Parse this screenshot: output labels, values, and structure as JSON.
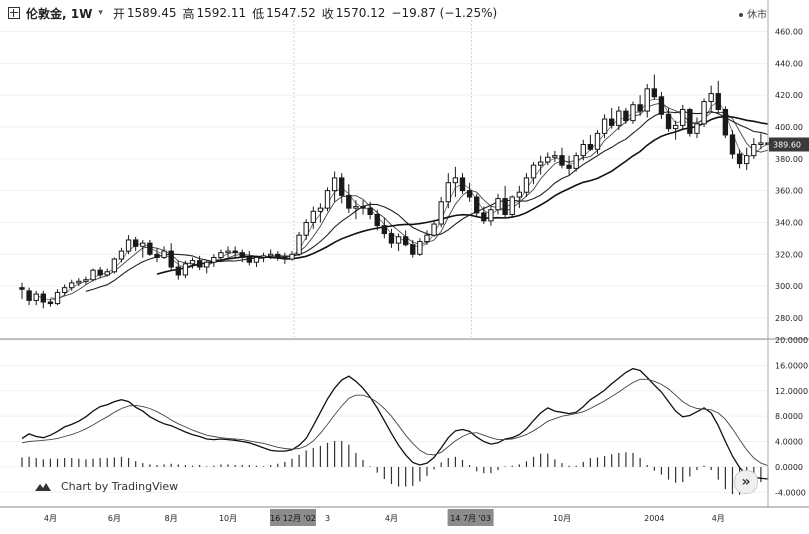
{
  "header": {
    "symbol": "伦敦金, 1W",
    "open_label": "开",
    "open_value": "1589.45",
    "high_label": "高",
    "high_value": "1592.11",
    "low_label": "低",
    "low_value": "1547.52",
    "close_label": "收",
    "close_value": "1570.12",
    "change": "−19.87 (−1.25%)",
    "market_status": "休市"
  },
  "branding": "Chart by TradingView",
  "price_badge": "389.60",
  "colors": {
    "candle": "#1a1a1a",
    "badge_bg": "#3a3a3a",
    "highlight_bg": "#8c8c8c",
    "grid": "#f1f1f1"
  },
  "chart_data": [
    {
      "type": "candlestick",
      "title": "",
      "y_axis_ticks": [
        "460.00",
        "440.00",
        "420.00",
        "400.00",
        "380.00",
        "360.00",
        "340.00",
        "320.00",
        "300.00",
        "280.00"
      ],
      "ylim": [
        268,
        466
      ],
      "x_tick_labels": [
        "4月",
        "6月",
        "8月",
        "10月",
        "3",
        "4月",
        "10月",
        "2004",
        "4月"
      ],
      "x_highlight_labels": [
        "16 12月 '02",
        "14 7月 '03"
      ],
      "x_index_range": [
        0,
        105
      ],
      "ohlc": [
        [
          299,
          302,
          292,
          298
        ],
        [
          297,
          299,
          288,
          291
        ],
        [
          291,
          297,
          288,
          295
        ],
        [
          295,
          297,
          286,
          290
        ],
        [
          290,
          292,
          287,
          289
        ],
        [
          289,
          298,
          288,
          296
        ],
        [
          296,
          301,
          294,
          299
        ],
        [
          299,
          304,
          297,
          302
        ],
        [
          302,
          305,
          300,
          303
        ],
        [
          303,
          306,
          301,
          304
        ],
        [
          304,
          311,
          303,
          310
        ],
        [
          310,
          312,
          305,
          307
        ],
        [
          307,
          311,
          306,
          309
        ],
        [
          309,
          318,
          308,
          317
        ],
        [
          317,
          324,
          315,
          322
        ],
        [
          322,
          332,
          320,
          329
        ],
        [
          329,
          331,
          322,
          325
        ],
        [
          325,
          329,
          318,
          327
        ],
        [
          327,
          329,
          319,
          320
        ],
        [
          320,
          324,
          315,
          318
        ],
        [
          318,
          325,
          317,
          322
        ],
        [
          322,
          327,
          310,
          312
        ],
        [
          312,
          316,
          304,
          307
        ],
        [
          307,
          316,
          305,
          314
        ],
        [
          314,
          318,
          311,
          316
        ],
        [
          316,
          319,
          310,
          312
        ],
        [
          312,
          316,
          308,
          315
        ],
        [
          315,
          320,
          312,
          318
        ],
        [
          318,
          323,
          316,
          321
        ],
        [
          321,
          325,
          318,
          322
        ],
        [
          322,
          325,
          318,
          321
        ],
        [
          321,
          323,
          315,
          318
        ],
        [
          318,
          322,
          313,
          315
        ],
        [
          315,
          319,
          312,
          318
        ],
        [
          318,
          321,
          315,
          319
        ],
        [
          319,
          323,
          317,
          320
        ],
        [
          320,
          322,
          316,
          318
        ],
        [
          318,
          321,
          314,
          317
        ],
        [
          317,
          322,
          316,
          320
        ],
        [
          320,
          334,
          319,
          332
        ],
        [
          332,
          342,
          329,
          340
        ],
        [
          340,
          350,
          336,
          347
        ],
        [
          347,
          352,
          340,
          349
        ],
        [
          349,
          362,
          347,
          360
        ],
        [
          360,
          372,
          353,
          368
        ],
        [
          368,
          371,
          352,
          357
        ],
        [
          357,
          364,
          346,
          349
        ],
        [
          349,
          354,
          342,
          350
        ],
        [
          350,
          354,
          345,
          349
        ],
        [
          349,
          353,
          342,
          345
        ],
        [
          345,
          348,
          335,
          338
        ],
        [
          338,
          343,
          330,
          333
        ],
        [
          333,
          336,
          324,
          327
        ],
        [
          327,
          333,
          322,
          331
        ],
        [
          331,
          335,
          325,
          326
        ],
        [
          326,
          329,
          318,
          320
        ],
        [
          320,
          330,
          319,
          328
        ],
        [
          328,
          335,
          326,
          332
        ],
        [
          332,
          341,
          331,
          339
        ],
        [
          339,
          356,
          337,
          353
        ],
        [
          353,
          371,
          349,
          365
        ],
        [
          365,
          375,
          356,
          368
        ],
        [
          368,
          371,
          358,
          360
        ],
        [
          360,
          365,
          353,
          356
        ],
        [
          356,
          358,
          344,
          346
        ],
        [
          346,
          350,
          339,
          341
        ],
        [
          341,
          350,
          338,
          348
        ],
        [
          348,
          358,
          345,
          355
        ],
        [
          355,
          363,
          343,
          345
        ],
        [
          345,
          357,
          343,
          356
        ],
        [
          356,
          363,
          349,
          359
        ],
        [
          359,
          371,
          356,
          368
        ],
        [
          368,
          378,
          364,
          376
        ],
        [
          376,
          382,
          370,
          378
        ],
        [
          378,
          384,
          376,
          381
        ],
        [
          381,
          385,
          378,
          382
        ],
        [
          382,
          387,
          374,
          376
        ],
        [
          376,
          382,
          370,
          374
        ],
        [
          374,
          384,
          372,
          382
        ],
        [
          382,
          392,
          379,
          389
        ],
        [
          389,
          395,
          385,
          386
        ],
        [
          386,
          398,
          383,
          396
        ],
        [
          396,
          408,
          393,
          405
        ],
        [
          405,
          412,
          399,
          401
        ],
        [
          401,
          413,
          398,
          410
        ],
        [
          410,
          412,
          402,
          404
        ],
        [
          404,
          416,
          402,
          414
        ],
        [
          414,
          420,
          407,
          410
        ],
        [
          410,
          427,
          406,
          424
        ],
        [
          424,
          433,
          417,
          419
        ],
        [
          419,
          422,
          405,
          408
        ],
        [
          408,
          412,
          397,
          399
        ],
        [
          399,
          404,
          392,
          401
        ],
        [
          401,
          414,
          398,
          411
        ],
        [
          411,
          412,
          394,
          396
        ],
        [
          396,
          406,
          393,
          402
        ],
        [
          402,
          418,
          400,
          416
        ],
        [
          416,
          426,
          410,
          421
        ],
        [
          421,
          429,
          408,
          411
        ],
        [
          411,
          413,
          393,
          395
        ],
        [
          395,
          398,
          380,
          383
        ],
        [
          383,
          386,
          374,
          377
        ],
        [
          377,
          387,
          373,
          382
        ],
        [
          382,
          393,
          380,
          389
        ],
        [
          389,
          396,
          386,
          390
        ],
        [
          390,
          395,
          387,
          389
        ]
      ]
    },
    {
      "type": "line",
      "title": "",
      "y_axis_ticks": [
        "20.0000",
        "16.0000",
        "12.0000",
        "8.0000",
        "4.0000",
        "0.0000",
        "-4.0000"
      ],
      "ylim": [
        -6,
        20
      ],
      "series": [
        {
          "values": [
            4.5,
            5.2,
            4.8,
            4.6,
            5.0,
            5.6,
            6.3,
            6.7,
            7.2,
            7.9,
            8.8,
            9.5,
            9.8,
            10.3,
            10.6,
            10.3,
            9.4,
            8.8,
            7.9,
            7.3,
            6.8,
            6.5,
            6.0,
            5.5,
            5.1,
            4.8,
            4.4,
            4.3,
            4.4,
            4.3,
            4.2,
            4.0,
            3.8,
            3.4,
            3.0,
            2.6,
            2.5,
            2.5,
            2.7,
            3.4,
            4.5,
            6.5,
            8.6,
            10.7,
            12.4,
            13.7,
            14.3,
            13.5,
            12.4,
            11.0,
            9.3,
            7.3,
            5.3,
            3.4,
            1.9,
            0.7,
            0.3,
            0.6,
            1.5,
            3.0,
            4.6,
            5.7,
            5.9,
            5.6,
            4.7,
            4.0,
            3.6,
            3.8,
            4.4,
            4.6,
            5.1,
            6.0,
            7.3,
            8.5,
            9.3,
            8.8,
            8.6,
            8.4,
            8.6,
            9.5,
            10.6,
            11.3,
            12.1,
            13.1,
            14.0,
            14.9,
            15.5,
            15.2,
            14.1,
            12.9,
            11.8,
            10.3,
            8.8,
            7.9,
            8.1,
            8.7,
            9.3,
            8.5,
            6.5,
            4.0,
            1.7,
            -0.1,
            -1.2,
            -1.6,
            -1.8,
            -1.9
          ]
        },
        {
          "values": [
            3.8,
            4.0,
            4.1,
            4.2,
            4.3,
            4.5,
            4.8,
            5.1,
            5.5,
            6.0,
            6.6,
            7.3,
            7.9,
            8.6,
            9.2,
            9.6,
            9.7,
            9.5,
            9.2,
            8.7,
            8.1,
            7.4,
            6.8,
            6.3,
            5.8,
            5.4,
            5.0,
            4.8,
            4.6,
            4.5,
            4.4,
            4.3,
            4.1,
            3.9,
            3.7,
            3.4,
            3.1,
            2.9,
            2.8,
            2.9,
            3.3,
            4.1,
            5.3,
            6.7,
            8.2,
            9.6,
            10.8,
            11.3,
            11.3,
            10.9,
            10.2,
            9.2,
            8.0,
            6.5,
            5.0,
            3.7,
            2.6,
            2.0,
            1.9,
            2.3,
            3.2,
            4.1,
            4.8,
            5.3,
            5.4,
            5.0,
            4.6,
            4.3,
            4.3,
            4.4,
            4.7,
            5.1,
            5.7,
            6.4,
            7.2,
            7.6,
            8.0,
            8.2,
            8.4,
            8.7,
            9.2,
            9.8,
            10.4,
            11.1,
            11.8,
            12.6,
            13.3,
            13.8,
            13.8,
            13.5,
            13.0,
            12.3,
            11.3,
            10.3,
            9.6,
            9.2,
            9.1,
            9.0,
            8.5,
            7.5,
            6.0,
            4.3,
            2.7,
            1.4,
            0.6,
            0.2
          ]
        }
      ],
      "histogram": [
        1.5,
        1.6,
        1.4,
        1.2,
        1.3,
        1.3,
        1.4,
        1.4,
        1.3,
        1.2,
        1.3,
        1.4,
        1.4,
        1.5,
        1.6,
        1.4,
        0.9,
        0.6,
        0.4,
        0.3,
        0.4,
        0.5,
        0.4,
        0.3,
        0.2,
        0.3,
        0.1,
        0.2,
        0.4,
        0.4,
        0.3,
        0.3,
        0.3,
        0.2,
        0.1,
        0.3,
        0.5,
        0.8,
        1.3,
        1.9,
        2.6,
        3.0,
        3.3,
        3.8,
        4.1,
        4.1,
        3.5,
        2.2,
        1.1,
        0.1,
        -0.9,
        -1.9,
        -2.7,
        -3.1,
        -3.1,
        -3.0,
        -2.3,
        -1.4,
        -0.4,
        0.7,
        1.4,
        1.6,
        1.1,
        0.3,
        -0.7,
        -1.0,
        -1.0,
        -0.5,
        0.1,
        0.2,
        0.4,
        0.9,
        1.6,
        2.1,
        2.1,
        1.2,
        0.6,
        0.2,
        0.2,
        0.8,
        1.4,
        1.5,
        1.7,
        2.0,
        2.2,
        2.3,
        2.2,
        1.4,
        0.3,
        -0.6,
        -1.2,
        -2.0,
        -2.5,
        -2.4,
        -1.5,
        -0.5,
        0.2,
        -0.5,
        -2.0,
        -3.5,
        -4.3,
        -4.4,
        -3.9,
        -3.0,
        -2.4,
        -2.1
      ]
    }
  ]
}
